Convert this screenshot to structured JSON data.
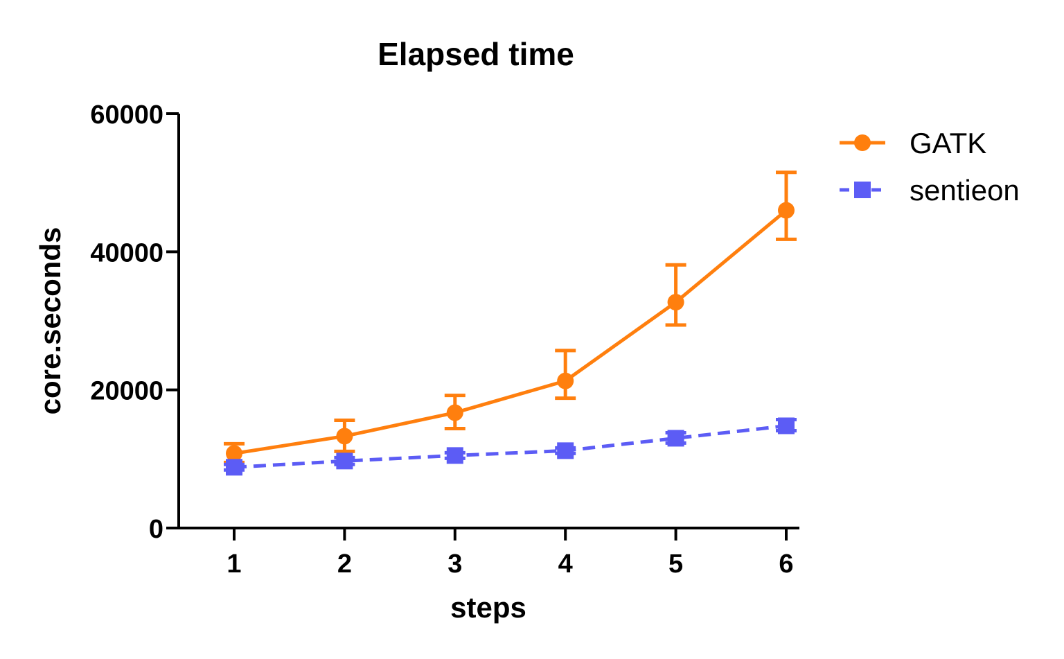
{
  "chart_data": {
    "type": "line",
    "title": "Elapsed time",
    "xlabel": "steps",
    "ylabel": "core.seconds",
    "x": [
      1,
      2,
      3,
      4,
      5,
      6
    ],
    "x_tick_labels": [
      "1",
      "2",
      "3",
      "4",
      "5",
      "6"
    ],
    "ylim": [
      0,
      60000
    ],
    "y_ticks": [
      0,
      20000,
      40000,
      60000
    ],
    "y_tick_labels": [
      "0",
      "20000",
      "40000",
      "60000"
    ],
    "grid": false,
    "legend_position": "top-right",
    "series": [
      {
        "name": "GATK",
        "color": "#ff7f0e",
        "line_style": "solid",
        "marker": "circle",
        "values": [
          10800,
          13300,
          16700,
          21300,
          32700,
          46000
        ],
        "error_low": [
          9500,
          11100,
          14400,
          18800,
          29400,
          41800
        ],
        "error_high": [
          12200,
          15600,
          19200,
          25700,
          38100,
          51500
        ]
      },
      {
        "name": "sentieon",
        "color": "#5c5cf5",
        "line_style": "dashed",
        "marker": "square",
        "values": [
          8800,
          9700,
          10500,
          11200,
          13000,
          14800
        ],
        "error_low": [
          8400,
          9200,
          10100,
          10800,
          12300,
          14100
        ],
        "error_high": [
          9200,
          10200,
          10900,
          11600,
          13800,
          15700
        ]
      }
    ]
  }
}
